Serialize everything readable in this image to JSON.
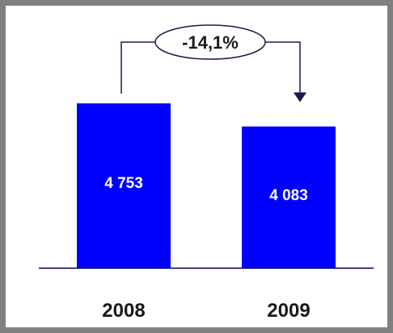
{
  "chart_data": {
    "type": "bar",
    "categories": [
      "2008",
      "2009"
    ],
    "values": [
      4753,
      4083
    ],
    "value_labels": [
      "4 753",
      "4 083"
    ],
    "ylim": [
      0,
      5000
    ],
    "grid": false,
    "bar_color": "#0000ff",
    "axis_color": "#000066",
    "annotation": {
      "type": "change-arrow",
      "from": "2008",
      "to": "2009",
      "label": "-14,1%"
    }
  }
}
